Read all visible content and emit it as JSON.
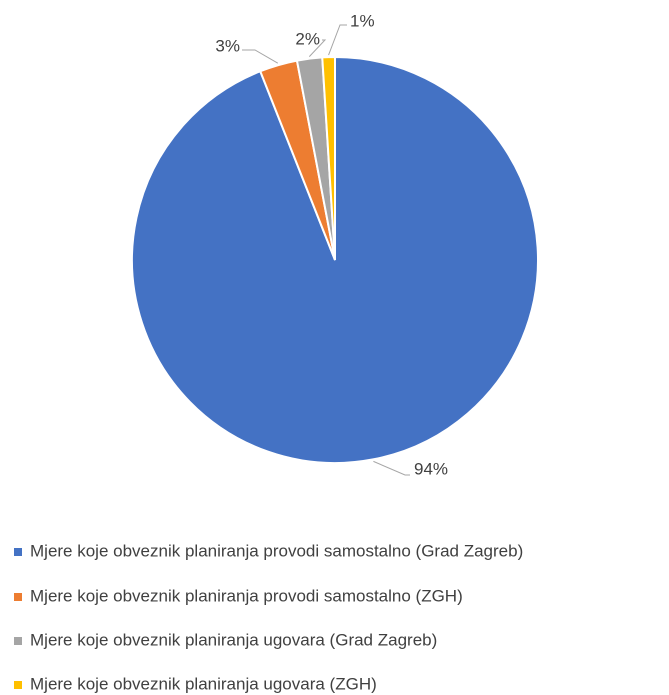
{
  "chart_data": {
    "type": "pie",
    "categories": [
      "Mjere koje obveznik planiranja provodi samostalno (Grad Zagreb)",
      "Mjere koje obveznik planiranja provodi samostalno (ZGH)",
      "Mjere koje obveznik planiranja ugovara (Grad Zagreb)",
      "Mjere koje obveznik planiranja ugovara (ZGH)"
    ],
    "values": [
      94,
      3,
      2,
      1
    ],
    "value_labels": [
      "94%",
      "3%",
      "2%",
      "1%"
    ],
    "colors": [
      "#4472c4",
      "#ed7d31",
      "#a5a5a5",
      "#ffc000"
    ]
  }
}
